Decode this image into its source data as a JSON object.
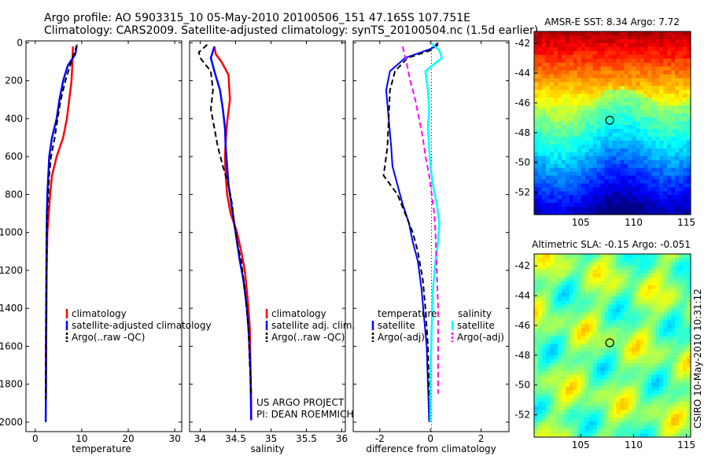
{
  "header": {
    "line1": "Argo profile: AO 5903315_10 05-May-2010 20100506_151 47.165S 107.751E",
    "line2": "Climatology: CARS2009. Satellite-adjusted climatology: synTS_20100504.nc (1.5d earlier)"
  },
  "colors": {
    "red": "#ff0000",
    "blue": "#0000ff",
    "black": "#000000",
    "cyan": "#00ffff",
    "magenta": "#ff00ff"
  },
  "chart_data": [
    {
      "type": "line",
      "id": "temperature",
      "xlabel": "temperature",
      "xlim": [
        -2,
        31.5
      ],
      "ylim": [
        2050,
        -10
      ],
      "xticks": [
        0,
        10,
        20,
        30
      ],
      "yticks": [
        0,
        200,
        400,
        600,
        800,
        1000,
        1200,
        1400,
        1600,
        1800,
        2000
      ],
      "legend": {
        "placement": "lower-right",
        "entries": [
          "climatology",
          "satellite-adjusted climatology",
          "Argo(..raw -QC)"
        ]
      },
      "series": [
        {
          "name": "climatology",
          "color": "red",
          "dash": "solid",
          "width": 2.5,
          "x": [
            8.1,
            8.0,
            7.8,
            7.3,
            6.8,
            6.0,
            4.6,
            3.6,
            3.2,
            2.9,
            2.6,
            2.45,
            2.4,
            2.35,
            2.3,
            2.3
          ],
          "y": [
            20,
            100,
            200,
            300,
            400,
            500,
            600,
            700,
            800,
            900,
            1000,
            1200,
            1400,
            1600,
            1800,
            1880
          ]
        },
        {
          "name": "satellite-adjusted climatology",
          "color": "blue",
          "dash": "solid",
          "width": 2.5,
          "x": [
            8.9,
            8.6,
            7.0,
            6.0,
            5.2,
            4.6,
            3.6,
            3.0,
            2.8,
            2.6,
            2.5,
            2.45,
            2.4,
            2.35,
            2.3,
            2.3,
            2.25
          ],
          "y": [
            20,
            60,
            120,
            200,
            300,
            400,
            500,
            600,
            700,
            800,
            900,
            1000,
            1200,
            1400,
            1600,
            1800,
            2000
          ]
        },
        {
          "name": "Argo(..raw -QC)",
          "color": "black",
          "dash": "dash",
          "width": 2,
          "x": [
            9.0,
            8.4,
            7.5,
            6.5,
            5.5,
            4.8,
            4.2,
            3.4,
            3.0,
            2.8,
            2.6,
            2.5,
            2.4,
            2.35,
            2.3,
            2.3
          ],
          "y": [
            10,
            50,
            120,
            200,
            300,
            400,
            500,
            600,
            700,
            800,
            900,
            1000,
            1200,
            1400,
            1600,
            1880
          ]
        }
      ]
    },
    {
      "type": "line",
      "id": "salinity",
      "xlabel": "salinity",
      "xlim": [
        33.85,
        36.05
      ],
      "ylim": [
        2050,
        -10
      ],
      "xticks": [
        34,
        34.5,
        35,
        35.5,
        36
      ],
      "legend": {
        "placement": "lower-right",
        "entries": [
          "climatology",
          "satellite adj. clim.",
          "Argo(..raw -QC)"
        ]
      },
      "series": [
        {
          "name": "climatology",
          "color": "red",
          "dash": "solid",
          "width": 2.5,
          "x": [
            34.2,
            34.22,
            34.3,
            34.4,
            34.42,
            34.38,
            34.36,
            34.35,
            34.36,
            34.38,
            34.43,
            34.52,
            34.58,
            34.63,
            34.67,
            34.7,
            34.71,
            34.72,
            34.72
          ],
          "y": [
            20,
            60,
            100,
            170,
            300,
            420,
            520,
            600,
            700,
            800,
            900,
            1000,
            1100,
            1200,
            1350,
            1500,
            1700,
            1900,
            1990
          ]
        },
        {
          "name": "satellite adj. clim.",
          "color": "blue",
          "dash": "solid",
          "width": 2.5,
          "x": [
            34.2,
            34.15,
            34.2,
            34.28,
            34.32,
            34.35,
            34.36,
            34.38,
            34.4,
            34.44,
            34.48,
            34.52,
            34.56,
            34.61,
            34.66,
            34.69,
            34.71,
            34.72
          ],
          "y": [
            20,
            80,
            150,
            250,
            350,
            450,
            550,
            650,
            750,
            850,
            950,
            1050,
            1150,
            1250,
            1400,
            1550,
            1750,
            1990
          ]
        },
        {
          "name": "Argo(..raw -QC)",
          "color": "black",
          "dash": "dash",
          "width": 2,
          "x": [
            34.1,
            33.98,
            34.0,
            34.15,
            34.18,
            34.15,
            34.2,
            34.25,
            34.32,
            34.4,
            34.45,
            34.48,
            34.52,
            34.58,
            34.63,
            34.68,
            34.7,
            34.72
          ],
          "y": [
            10,
            50,
            80,
            150,
            250,
            350,
            450,
            550,
            650,
            750,
            850,
            950,
            1050,
            1150,
            1300,
            1500,
            1700,
            1850
          ]
        }
      ]
    },
    {
      "type": "line",
      "id": "difference",
      "xlabel": "difference from climatology",
      "xlim": [
        -3.05,
        3.1
      ],
      "ylim": [
        2050,
        -10
      ],
      "xticks": [
        -2,
        0,
        2
      ],
      "legend": {
        "placement": "lower-right",
        "left": {
          "title": "temperature",
          "entries": [
            "satellite",
            "Argo(-adj)"
          ]
        },
        "right": {
          "title": "salinity",
          "entries": [
            "satellite",
            "Argo(-adj)"
          ]
        }
      },
      "series": [
        {
          "name": "temperature satellite",
          "color": "blue",
          "dash": "solid",
          "width": 2,
          "x": [
            0.3,
            0.05,
            -1.0,
            -1.6,
            -1.75,
            -1.65,
            -1.55,
            -1.5,
            -1.3,
            -1.1,
            -0.85,
            -0.7,
            -0.5,
            -0.35,
            -0.25,
            -0.15,
            -0.1,
            -0.05
          ],
          "y": [
            0,
            30,
            80,
            150,
            250,
            400,
            550,
            650,
            750,
            850,
            950,
            1050,
            1150,
            1300,
            1450,
            1600,
            1800,
            2000
          ]
        },
        {
          "name": "temperature Argo(-adj)",
          "color": "black",
          "dash": "dash",
          "width": 2,
          "x": [
            0.3,
            0.0,
            -0.9,
            -1.4,
            -1.6,
            -1.65,
            -1.7,
            -1.85,
            -1.3,
            -1.0,
            -0.7,
            -0.5,
            -0.3,
            -0.2,
            -0.1,
            -0.05
          ],
          "y": [
            10,
            40,
            80,
            150,
            250,
            400,
            550,
            700,
            800,
            900,
            1000,
            1100,
            1250,
            1400,
            1600,
            1880
          ]
        },
        {
          "name": "salinity satellite",
          "color": "cyan",
          "dash": "solid",
          "width": 2.5,
          "x": [
            0.0,
            0.35,
            0.45,
            -0.2,
            -0.1,
            -0.05,
            -0.1,
            -0.05,
            0.0,
            0.1,
            0.25,
            0.35,
            0.3,
            0.2,
            0.1,
            0.05,
            0.0,
            0.0
          ],
          "y": [
            0,
            40,
            80,
            150,
            250,
            350,
            450,
            550,
            650,
            750,
            850,
            950,
            1050,
            1150,
            1300,
            1500,
            1750,
            2000
          ]
        },
        {
          "name": "salinity Argo(-adj)",
          "color": "magenta",
          "dash": "dash",
          "width": 2,
          "x": [
            -1.1,
            -0.95,
            -0.8,
            -0.6,
            -0.45,
            -0.3,
            -0.2,
            -0.05,
            0.05,
            0.15,
            0.2,
            0.25,
            0.3,
            0.3,
            0.3
          ],
          "y": [
            20,
            100,
            200,
            300,
            400,
            500,
            600,
            700,
            800,
            900,
            1000,
            1200,
            1400,
            1600,
            1850
          ]
        }
      ]
    }
  ],
  "maps": [
    {
      "id": "sst",
      "title": "AMSR-E SST: 8.34 Argo: 7.72",
      "xticks": [
        "105",
        "110",
        "115"
      ],
      "yticks": [
        "-42",
        "-44",
        "-46",
        "-48",
        "-50",
        "-52"
      ]
    },
    {
      "id": "sla",
      "title": "Altimetric SLA: -0.15 Argo: -0.051",
      "xticks": [
        "105",
        "110",
        "115"
      ],
      "yticks": [
        "-42",
        "-44",
        "-46",
        "-48",
        "-50",
        "-52"
      ]
    }
  ],
  "map_geo": {
    "lon": [
      100.6,
      115.4
    ],
    "lat": [
      -53.5,
      -41.2
    ],
    "point": [
      107.75,
      -47.165
    ]
  },
  "credits": {
    "project_line1": "US ARGO PROJECT",
    "project_line2": "PI: DEAN ROEMMICH",
    "side": "CSIRO 10-May-2010 10:31:12"
  }
}
